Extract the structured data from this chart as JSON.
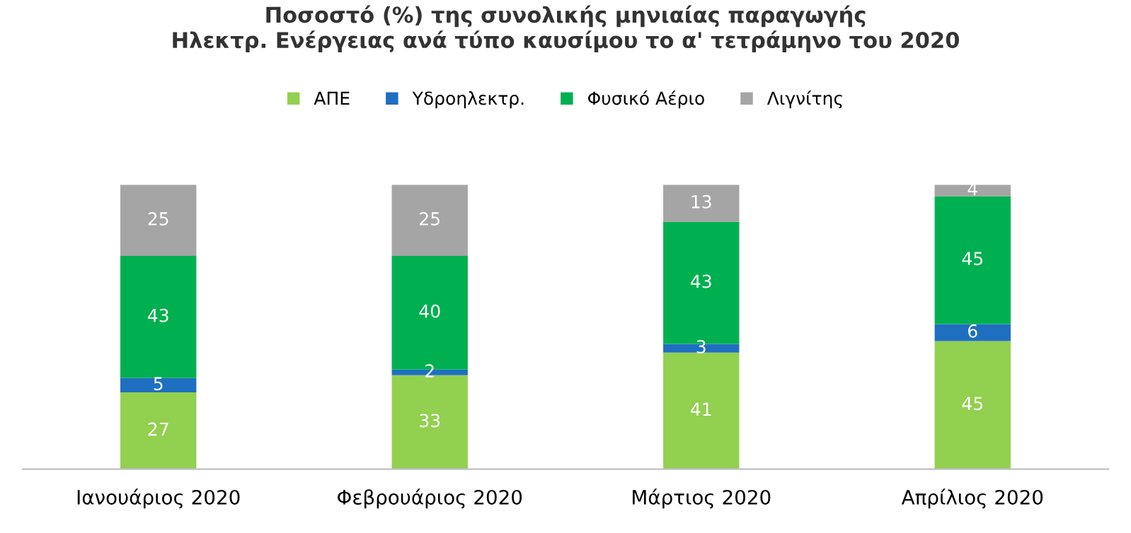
{
  "chart_data": {
    "type": "bar",
    "stacked": true,
    "title": "Ποσοστό (%) της συνολικής μηνιαίας παραγωγής\nΗλεκτρ. Ενέργειας ανά τύπο καυσίμου το α' τετράμηνο του 2020",
    "categories": [
      "Ιανουάριος 2020",
      "Φεβρουάριος 2020",
      "Μάρτιος 2020",
      "Απρίλιος 2020"
    ],
    "series": [
      {
        "name": "ΑΠΕ",
        "color": "#92d050",
        "values": [
          27,
          33,
          41,
          45
        ]
      },
      {
        "name": "Υδροηλεκτρ.",
        "color": "#1f6fc0",
        "values": [
          5,
          2,
          3,
          6
        ]
      },
      {
        "name": "Φυσικό Αέριο",
        "color": "#00b050",
        "values": [
          43,
          40,
          43,
          45
        ]
      },
      {
        "name": "Λιγνίτης",
        "color": "#a5a5a5",
        "values": [
          25,
          25,
          13,
          4
        ]
      }
    ],
    "data_labels": true,
    "legend": "top",
    "grid": false,
    "tick_labels": "x"
  }
}
